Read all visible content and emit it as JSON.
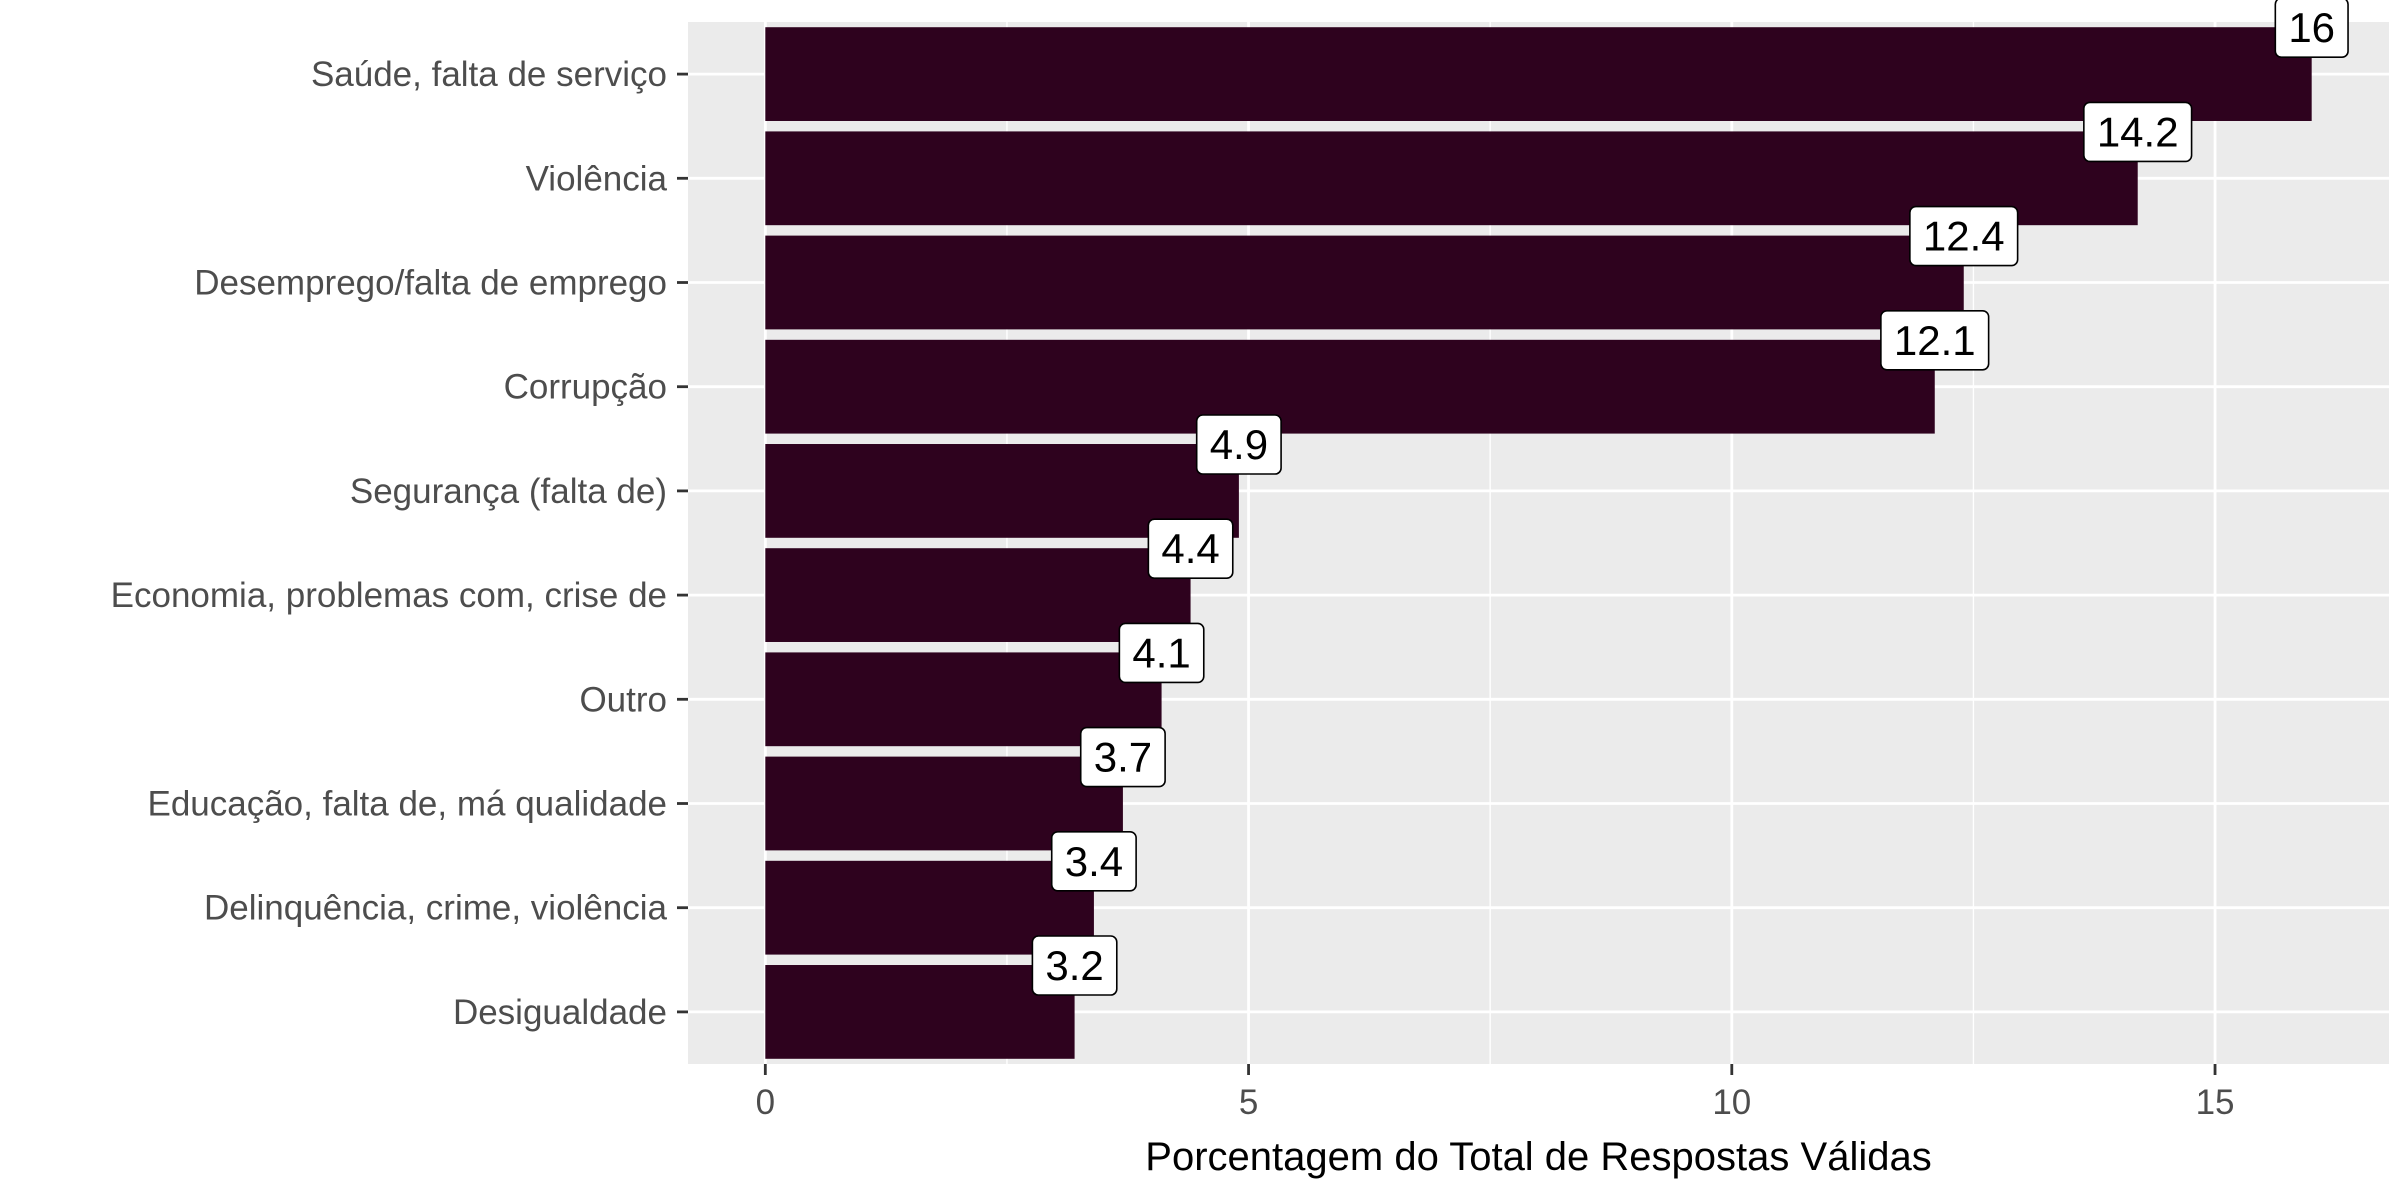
{
  "chart_data": {
    "type": "bar",
    "orientation": "horizontal",
    "categories": [
      "Saúde, falta de serviço",
      "Violência",
      "Desemprego/falta de emprego",
      "Corrupção",
      "Segurança (falta de)",
      "Economia, problemas com, crise de",
      "Outro",
      "Educação, falta de, má qualidade",
      "Delinquência, crime, violência",
      "Desigualdade"
    ],
    "values": [
      16,
      14.2,
      12.4,
      12.1,
      4.9,
      4.4,
      4.1,
      3.7,
      3.4,
      3.2
    ],
    "data_labels": [
      "16",
      "14.2",
      "12.4",
      "12.1",
      "4.9",
      "4.4",
      "4.1",
      "3.7",
      "3.4",
      "3.2"
    ],
    "xlabel": "Porcentagem do Total de Respostas Válidas",
    "ylabel": "",
    "title": "",
    "xlim": [
      -0.8,
      16.8
    ],
    "xticks": [
      0,
      5,
      10,
      15
    ],
    "xtick_labels": [
      "0",
      "5",
      "10",
      "15"
    ],
    "grid": true,
    "colors": {
      "bar": "#2e021e",
      "panel": "#ebebeb",
      "grid_major": "#ffffff",
      "tick_text": "#4d4d4d",
      "label_box": "#ffffff"
    }
  }
}
